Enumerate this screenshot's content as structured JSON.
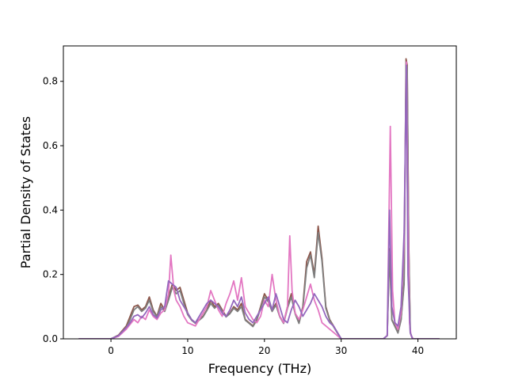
{
  "chart_data": {
    "type": "line",
    "title": "",
    "xlabel": "Frequency (THz)",
    "ylabel": "Partial Density of States",
    "xlim": [
      -6.2,
      45.0
    ],
    "ylim": [
      0,
      0.91
    ],
    "xticks": [
      "0",
      "10",
      "20",
      "30",
      "40"
    ],
    "xtick_values": [
      0,
      10,
      20,
      30,
      40
    ],
    "yticks": [
      "0.0",
      "0.2",
      "0.4",
      "0.6",
      "0.8"
    ],
    "ytick_values": [
      0.0,
      0.2,
      0.4,
      0.6,
      0.8
    ],
    "grid": false,
    "legend": "none",
    "series": [
      {
        "color": "#8c564b",
        "x": [
          -4.2,
          0,
          1,
          2,
          2.5,
          3,
          3.5,
          4,
          4.5,
          5,
          5.5,
          6,
          6.5,
          7,
          7.5,
          8,
          8.5,
          9,
          9.5,
          10,
          10.5,
          11,
          11.5,
          12,
          12.5,
          13,
          13.5,
          14,
          14.5,
          15,
          15.5,
          16,
          16.5,
          17,
          17.5,
          18,
          18.5,
          19,
          19.5,
          20,
          20.5,
          21,
          21.5,
          22,
          22.5,
          23,
          23.5,
          24,
          24.5,
          25,
          25.5,
          26,
          26.5,
          27,
          27.5,
          28,
          28.5,
          29,
          29.5,
          30,
          35.5,
          36.0,
          36.3,
          36.6,
          37.0,
          37.4,
          37.8,
          38.2,
          38.45,
          38.6,
          38.8,
          39.0,
          39.3,
          40,
          42.8
        ],
        "y": [
          0,
          0,
          0.012,
          0.04,
          0.07,
          0.1,
          0.105,
          0.09,
          0.1,
          0.13,
          0.09,
          0.07,
          0.11,
          0.09,
          0.13,
          0.17,
          0.15,
          0.16,
          0.12,
          0.08,
          0.06,
          0.05,
          0.06,
          0.07,
          0.09,
          0.12,
          0.1,
          0.11,
          0.09,
          0.07,
          0.08,
          0.1,
          0.09,
          0.11,
          0.06,
          0.05,
          0.04,
          0.06,
          0.1,
          0.14,
          0.12,
          0.09,
          0.11,
          0.07,
          0.05,
          0.1,
          0.14,
          0.08,
          0.05,
          0.1,
          0.24,
          0.27,
          0.2,
          0.35,
          0.25,
          0.1,
          0.06,
          0.04,
          0.02,
          0,
          0,
          0.01,
          0.28,
          0.06,
          0.04,
          0.02,
          0.06,
          0.18,
          0.87,
          0.85,
          0.3,
          0.02,
          0,
          0,
          0
        ]
      },
      {
        "color": "#7f7f7f",
        "x": [
          -4.2,
          0,
          1,
          2,
          2.5,
          3,
          3.5,
          4,
          4.5,
          5,
          5.5,
          6,
          6.5,
          7,
          7.5,
          8,
          8.5,
          9,
          9.5,
          10,
          10.5,
          11,
          11.5,
          12,
          12.5,
          13,
          13.5,
          14,
          14.5,
          15,
          15.5,
          16,
          16.5,
          17,
          17.5,
          18,
          18.5,
          19,
          19.5,
          20,
          20.5,
          21,
          21.5,
          22,
          22.5,
          23,
          23.5,
          24,
          24.5,
          25,
          25.5,
          26,
          26.5,
          27,
          27.5,
          28,
          28.5,
          29,
          29.5,
          30,
          35.5,
          36.0,
          36.3,
          36.6,
          37.0,
          37.4,
          37.8,
          38.2,
          38.45,
          38.6,
          38.8,
          39.0,
          39.3,
          40,
          42.8
        ],
        "y": [
          0,
          0,
          0.01,
          0.035,
          0.06,
          0.09,
          0.1,
          0.085,
          0.095,
          0.12,
          0.085,
          0.068,
          0.1,
          0.085,
          0.12,
          0.16,
          0.14,
          0.15,
          0.11,
          0.075,
          0.058,
          0.048,
          0.058,
          0.068,
          0.088,
          0.11,
          0.095,
          0.105,
          0.085,
          0.068,
          0.078,
          0.095,
          0.085,
          0.1,
          0.058,
          0.048,
          0.038,
          0.058,
          0.095,
          0.13,
          0.115,
          0.085,
          0.105,
          0.068,
          0.048,
          0.095,
          0.13,
          0.078,
          0.048,
          0.095,
          0.22,
          0.26,
          0.19,
          0.33,
          0.24,
          0.095,
          0.058,
          0.038,
          0.018,
          0,
          0,
          0.01,
          0.27,
          0.058,
          0.038,
          0.018,
          0.058,
          0.17,
          0.86,
          0.84,
          0.29,
          0.018,
          0,
          0,
          0
        ]
      },
      {
        "color": "#e377c2",
        "x": [
          -4.2,
          0,
          1,
          2,
          2.5,
          3,
          3.5,
          4,
          4.5,
          5,
          5.5,
          6,
          6.5,
          7,
          7.5,
          7.8,
          8.2,
          8.5,
          9,
          9.5,
          10,
          10.5,
          11,
          11.5,
          12,
          12.5,
          13,
          13.5,
          14,
          14.5,
          15,
          15.5,
          16,
          16.5,
          17,
          17.5,
          18,
          18.5,
          19,
          19.5,
          20,
          20.5,
          21,
          21.5,
          22,
          22.5,
          23,
          23.3,
          23.6,
          24,
          24.5,
          25,
          25.5,
          26,
          26.5,
          27,
          27.5,
          28,
          28.5,
          29,
          29.5,
          30,
          35.5,
          36.0,
          36.4,
          36.7,
          37.0,
          37.4,
          37.8,
          38.2,
          38.5,
          38.7,
          38.9,
          39.1,
          39.4,
          40,
          42.8
        ],
        "y": [
          0,
          0,
          0.008,
          0.03,
          0.045,
          0.06,
          0.05,
          0.07,
          0.06,
          0.09,
          0.07,
          0.06,
          0.08,
          0.09,
          0.14,
          0.26,
          0.15,
          0.12,
          0.1,
          0.07,
          0.05,
          0.045,
          0.04,
          0.06,
          0.08,
          0.1,
          0.15,
          0.12,
          0.09,
          0.07,
          0.11,
          0.14,
          0.18,
          0.12,
          0.19,
          0.1,
          0.08,
          0.06,
          0.05,
          0.07,
          0.12,
          0.1,
          0.2,
          0.12,
          0.07,
          0.05,
          0.1,
          0.32,
          0.15,
          0.08,
          0.06,
          0.09,
          0.13,
          0.17,
          0.12,
          0.09,
          0.05,
          0.04,
          0.03,
          0.02,
          0.01,
          0,
          0,
          0.01,
          0.66,
          0.15,
          0.05,
          0.03,
          0.08,
          0.3,
          0.86,
          0.4,
          0.05,
          0.01,
          0,
          0,
          0
        ]
      },
      {
        "color": "#9467bd",
        "x": [
          -4.2,
          0,
          1,
          2,
          2.5,
          3,
          3.5,
          4,
          4.5,
          5,
          5.5,
          6,
          6.5,
          7,
          7.5,
          8,
          8.5,
          9,
          9.5,
          10,
          10.5,
          11,
          11.5,
          12,
          12.5,
          13,
          13.5,
          14,
          14.5,
          15,
          15.5,
          16,
          16.5,
          17,
          17.5,
          18,
          18.5,
          19,
          19.5,
          20,
          20.5,
          21,
          21.5,
          22,
          22.5,
          23,
          23.5,
          24,
          24.5,
          25,
          25.5,
          26,
          26.5,
          27,
          27.5,
          28,
          28.5,
          29,
          29.5,
          30,
          35.5,
          36.0,
          36.3,
          36.6,
          37.0,
          37.4,
          37.8,
          38.2,
          38.5,
          38.7,
          39.0,
          39.3,
          40,
          42.8
        ],
        "y": [
          0,
          0,
          0.01,
          0.035,
          0.05,
          0.07,
          0.075,
          0.065,
          0.08,
          0.1,
          0.075,
          0.065,
          0.09,
          0.1,
          0.18,
          0.17,
          0.16,
          0.12,
          0.1,
          0.08,
          0.06,
          0.05,
          0.07,
          0.09,
          0.11,
          0.12,
          0.11,
          0.1,
          0.08,
          0.07,
          0.09,
          0.12,
          0.1,
          0.13,
          0.08,
          0.06,
          0.05,
          0.07,
          0.09,
          0.11,
          0.13,
          0.09,
          0.14,
          0.1,
          0.06,
          0.05,
          0.09,
          0.12,
          0.1,
          0.07,
          0.09,
          0.11,
          0.14,
          0.12,
          0.1,
          0.07,
          0.05,
          0.04,
          0.02,
          0,
          0,
          0.01,
          0.4,
          0.1,
          0.05,
          0.04,
          0.1,
          0.33,
          0.85,
          0.2,
          0.02,
          0,
          0,
          0
        ]
      }
    ]
  }
}
